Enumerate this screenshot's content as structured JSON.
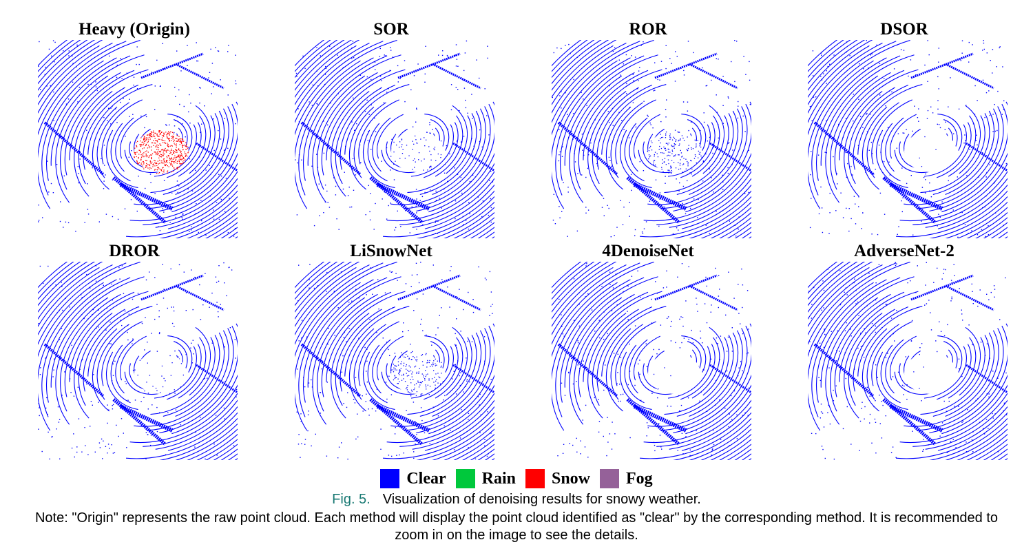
{
  "figure": {
    "panels": [
      {
        "title": "Heavy (Origin)",
        "snow_points": "dense"
      },
      {
        "title": "SOR",
        "snow_points": "sparse"
      },
      {
        "title": "ROR",
        "snow_points": "medium"
      },
      {
        "title": "DSOR",
        "snow_points": "none"
      },
      {
        "title": "DROR",
        "snow_points": "few"
      },
      {
        "title": "LiSnowNet",
        "snow_points": "medium"
      },
      {
        "title": "4DenoiseNet",
        "snow_points": "none"
      },
      {
        "title": "AdverseNet-2",
        "snow_points": "none"
      }
    ],
    "legend": [
      {
        "label": "Clear",
        "color": "#0000ff"
      },
      {
        "label": "Rain",
        "color": "#00c83c"
      },
      {
        "label": "Snow",
        "color": "#ff0000"
      },
      {
        "label": "Fog",
        "color": "#956199"
      }
    ]
  },
  "caption": {
    "fig_label": "Fig. 5.",
    "text": "Visualization of denoising results for snowy weather."
  },
  "note": "Note: \"Origin\" represents the raw point cloud. Each method will display the point cloud identified as \"clear\" by the corresponding method. It is recommended to zoom in on the image to see the details."
}
